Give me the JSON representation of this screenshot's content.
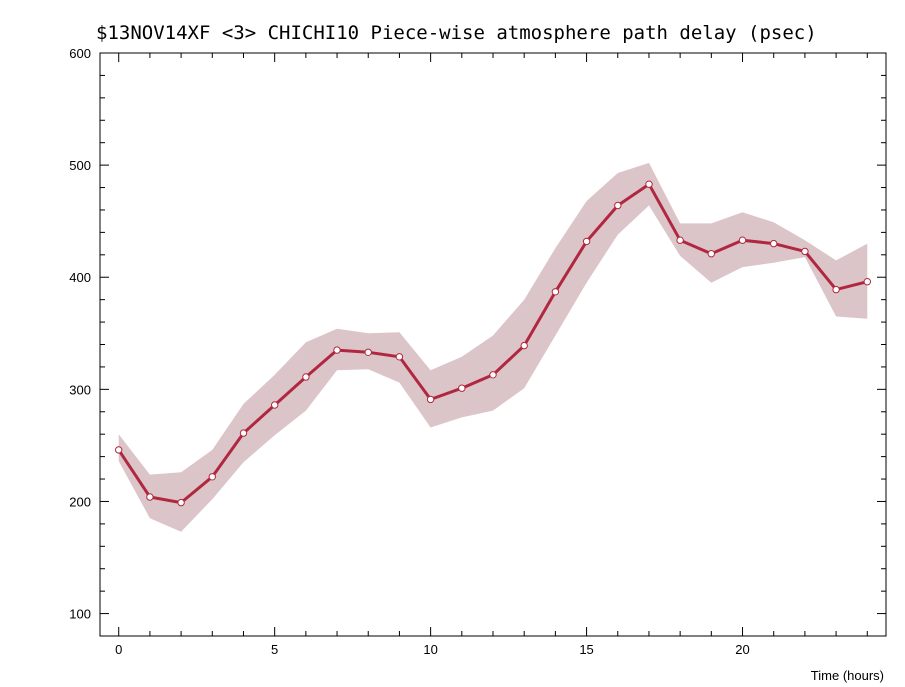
{
  "chart_data": {
    "type": "line",
    "title": "$13NOV14XF <3>  CHICHI10  Piece-wise atmosphere path delay (psec)",
    "xlabel": "Time (hours)",
    "ylabel": "",
    "xlim": [
      -0.6,
      24.6
    ],
    "ylim": [
      80,
      600
    ],
    "xticks": [
      0,
      5,
      10,
      15,
      20
    ],
    "yticks": [
      100,
      200,
      300,
      400,
      500,
      600
    ],
    "grid": false,
    "colors": {
      "line": "#b0283f",
      "band": "#dcc5c9",
      "marker_fill": "#ffffff"
    },
    "series": [
      {
        "x": [
          0,
          1,
          2,
          3,
          4,
          5,
          6,
          7,
          8,
          9,
          10,
          11,
          12,
          13,
          14,
          15,
          16,
          17,
          18,
          19,
          20,
          21,
          22,
          23,
          24
        ],
        "values": [
          246,
          204,
          199,
          222,
          261,
          286,
          311,
          335,
          333,
          329,
          291,
          301,
          313,
          339,
          387,
          432,
          464,
          483,
          433,
          421,
          433,
          430,
          423,
          389,
          396
        ],
        "band_upper": [
          260,
          224,
          226,
          246,
          287,
          313,
          342,
          354,
          350,
          351,
          317,
          329,
          348,
          380,
          426,
          468,
          493,
          502,
          448,
          448,
          458,
          449,
          433,
          415,
          430
        ],
        "band_lower": [
          236,
          185,
          173,
          202,
          235,
          259,
          281,
          317,
          318,
          306,
          266,
          275,
          281,
          301,
          348,
          395,
          438,
          464,
          419,
          395,
          409,
          413,
          418,
          365,
          363
        ]
      }
    ]
  }
}
